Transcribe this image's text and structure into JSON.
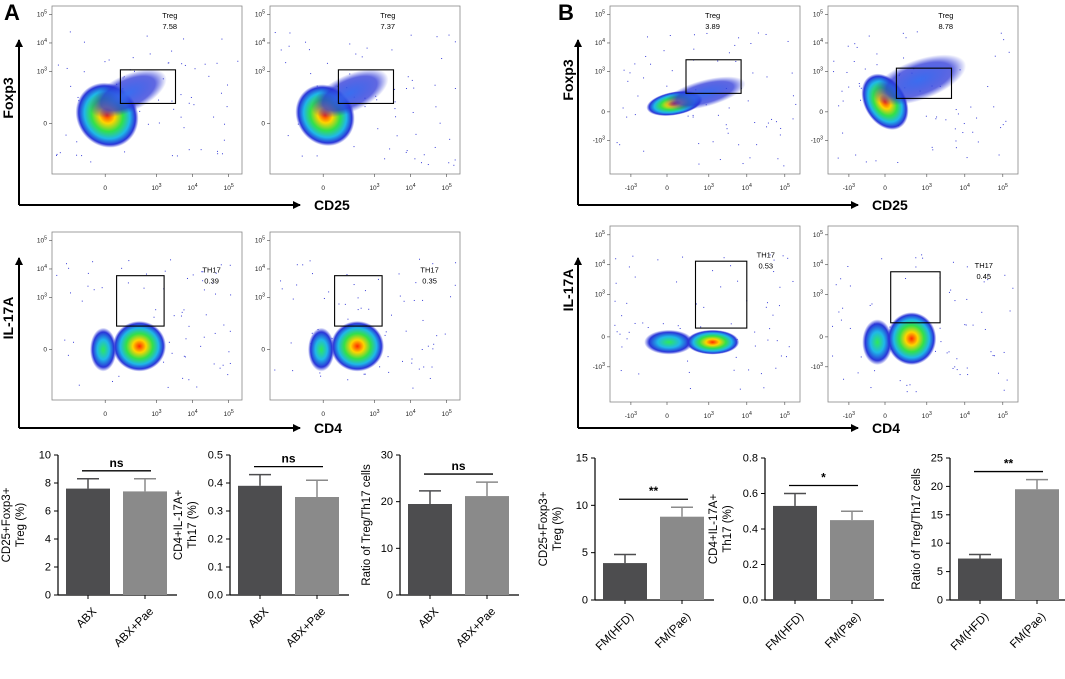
{
  "panel_labels": [
    "A",
    "B"
  ],
  "flow_plots": {
    "A": {
      "foxp3_axis_label": "Foxp3",
      "cd25_axis_label": "CD25",
      "il17a_axis_label": "IL-17A",
      "cd4_axis_label": "CD4",
      "treg": [
        {
          "gate_label": "Treg",
          "value": "7.58"
        },
        {
          "gate_label": "Treg",
          "value": "7.37"
        }
      ],
      "th17": [
        {
          "gate_label": "TH17",
          "value": "0.39"
        },
        {
          "gate_label": "TH17",
          "value": "0.35"
        }
      ]
    },
    "B": {
      "foxp3_axis_label": "Foxp3",
      "cd25_axis_label": "CD25",
      "il17a_axis_label": "IL-17A",
      "cd4_axis_label": "CD4",
      "treg": [
        {
          "gate_label": "Treg",
          "value": "3.89"
        },
        {
          "gate_label": "Treg",
          "value": "8.78"
        }
      ],
      "th17": [
        {
          "gate_label": "TH17",
          "value": "0.53"
        },
        {
          "gate_label": "TH17",
          "value": "0.45"
        }
      ]
    },
    "tick_labels": {
      "y_a": [
        "10^5",
        "10^4",
        "10^3",
        "0"
      ],
      "x_a": [
        "0",
        "10^3",
        "10^4",
        "10^5"
      ],
      "y_b": [
        "10^5",
        "10^4",
        "10^3",
        "0",
        "-10^3"
      ],
      "x_b": [
        "-10^3",
        "0",
        "10^3",
        "10^4",
        "10^5"
      ]
    }
  },
  "chart_data": [
    {
      "type": "bar",
      "ylabel_lines": [
        "CD25+Foxp3+",
        "Treg (%)"
      ],
      "categories": [
        "ABX",
        "ABX+Pae"
      ],
      "values": [
        7.6,
        7.4
      ],
      "errors": [
        0.7,
        0.9
      ],
      "ylim": [
        0,
        10
      ],
      "yticks": [
        0,
        2,
        4,
        6,
        8,
        10
      ],
      "ytick_labels": [
        "0",
        "2",
        "4",
        "6",
        "8",
        "10"
      ],
      "significance": "ns"
    },
    {
      "type": "bar",
      "ylabel_lines": [
        "CD4+IL-17A+",
        "Th17 (%)"
      ],
      "categories": [
        "ABX",
        "ABX+Pae"
      ],
      "values": [
        0.39,
        0.35
      ],
      "errors": [
        0.04,
        0.06
      ],
      "ylim": [
        0,
        0.5
      ],
      "yticks": [
        0,
        0.1,
        0.2,
        0.3,
        0.4,
        0.5
      ],
      "ytick_labels": [
        "0.0",
        "0.1",
        "0.2",
        "0.3",
        "0.4",
        "0.5"
      ],
      "significance": "ns"
    },
    {
      "type": "bar",
      "ylabel_lines": [
        "Ratio of Treg/Th17 cells"
      ],
      "categories": [
        "ABX",
        "ABX+Pae"
      ],
      "values": [
        19.5,
        21.2
      ],
      "errors": [
        2.8,
        3.0
      ],
      "ylim": [
        0,
        30
      ],
      "yticks": [
        0,
        10,
        20,
        30
      ],
      "ytick_labels": [
        "0",
        "10",
        "20",
        "30"
      ],
      "significance": "ns"
    },
    {
      "type": "bar",
      "ylabel_lines": [
        "CD25+Foxp3+",
        "Treg (%)"
      ],
      "categories": [
        "FM(HFD)",
        "FM(Pae)"
      ],
      "values": [
        3.9,
        8.8
      ],
      "errors": [
        0.9,
        1.0
      ],
      "ylim": [
        0,
        15
      ],
      "yticks": [
        0,
        5,
        10,
        15
      ],
      "ytick_labels": [
        "0",
        "5",
        "10",
        "15"
      ],
      "significance": "**"
    },
    {
      "type": "bar",
      "ylabel_lines": [
        "CD4+IL-17A+",
        "Th17 (%)"
      ],
      "categories": [
        "FM(HFD)",
        "FM(Pae)"
      ],
      "values": [
        0.53,
        0.45
      ],
      "errors": [
        0.07,
        0.05
      ],
      "ylim": [
        0,
        0.8
      ],
      "yticks": [
        0,
        0.2,
        0.4,
        0.6,
        0.8
      ],
      "ytick_labels": [
        "0.0",
        "0.2",
        "0.4",
        "0.6",
        "0.8"
      ],
      "significance": "*"
    },
    {
      "type": "bar",
      "ylabel_lines": [
        "Ratio of Treg/Th17 cells"
      ],
      "categories": [
        "FM(HFD)",
        "FM(Pae)"
      ],
      "values": [
        7.3,
        19.5
      ],
      "errors": [
        0.7,
        1.7
      ],
      "ylim": [
        0,
        25
      ],
      "yticks": [
        0,
        5,
        10,
        15,
        20,
        25
      ],
      "ytick_labels": [
        "0",
        "5",
        "10",
        "15",
        "20",
        "25"
      ],
      "significance": "**"
    }
  ],
  "colors": {
    "bar_dark": "#4d4d4f",
    "bar_light": "#8a8a8a",
    "axis": "#000000",
    "gate": "#000000"
  }
}
